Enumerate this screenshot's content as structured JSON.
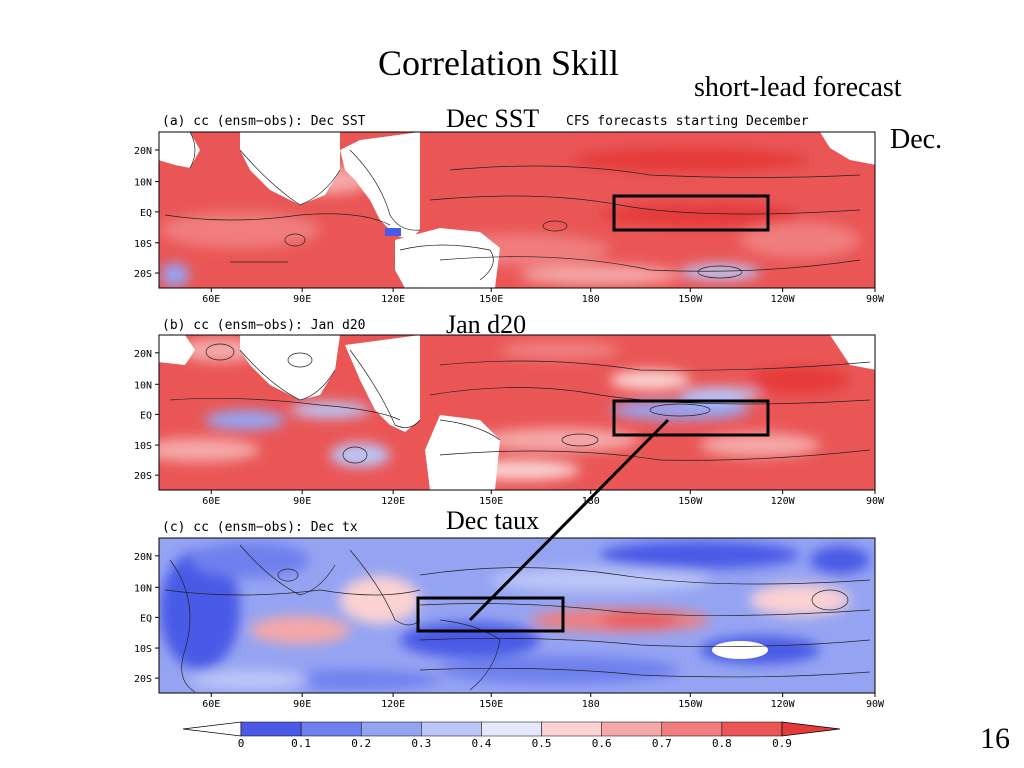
{
  "slide": {
    "title": "Correlation Skill",
    "lead": "short-lead forecast",
    "month": "Dec.",
    "page_number": "16"
  },
  "panels": [
    {
      "id": "a",
      "title": "(a) cc (ensm−obs): Dec SST",
      "var_label": "Dec SST",
      "note": "CFS forecasts starting December",
      "field": "sst"
    },
    {
      "id": "b",
      "title": "(b) cc (ensm−obs): Jan d20",
      "var_label": "Jan d20",
      "note": "",
      "field": "d20"
    },
    {
      "id": "c",
      "title": "(c) cc (ensm−obs): Dec tx",
      "var_label": "Dec taux",
      "note": "",
      "field": "taux"
    }
  ],
  "map_axes": {
    "lon_ticks": [
      "60E",
      "90E",
      "120E",
      "150E",
      "180",
      "150W",
      "120W",
      "90W"
    ],
    "lat_ticks": [
      "20N",
      "10N",
      "EQ",
      "10S",
      "20S"
    ]
  },
  "colorbar": {
    "ticks": [
      "0",
      "0.1",
      "0.2",
      "0.3",
      "0.4",
      "0.5",
      "0.6",
      "0.7",
      "0.8",
      "0.9"
    ],
    "colors": [
      "#ffffff",
      "#4a5ae6",
      "#6e80ee",
      "#95a4f2",
      "#bcc6f7",
      "#e4e8fb",
      "#fbd2d2",
      "#f5a8a8",
      "#f07e7e",
      "#ea5656",
      "#e53a3a"
    ]
  }
}
